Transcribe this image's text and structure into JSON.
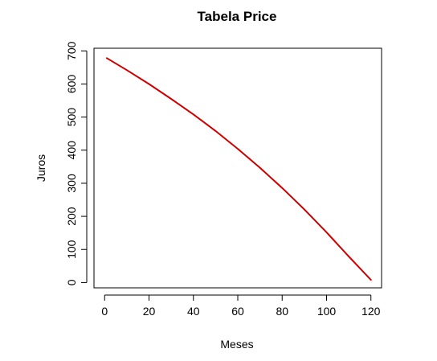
{
  "chart_data": {
    "type": "line",
    "title": "Tabela Price",
    "xlabel": "Meses",
    "ylabel": "Juros",
    "xlim": [
      -4.8,
      124.8
    ],
    "ylim": [
      -16,
      708
    ],
    "xticks": [
      0,
      20,
      40,
      60,
      80,
      100,
      120
    ],
    "yticks": [
      0,
      100,
      200,
      300,
      400,
      500,
      600,
      700
    ],
    "grid": false,
    "legend": "none",
    "series": [
      {
        "color": "#cc0000",
        "x": [
          1,
          10,
          20,
          30,
          40,
          50,
          60,
          70,
          80,
          90,
          100,
          110,
          120
        ],
        "y": [
          678,
          642,
          600,
          555,
          508,
          458,
          404,
          347,
          286,
          221,
          152,
          79,
          8
        ]
      }
    ]
  }
}
